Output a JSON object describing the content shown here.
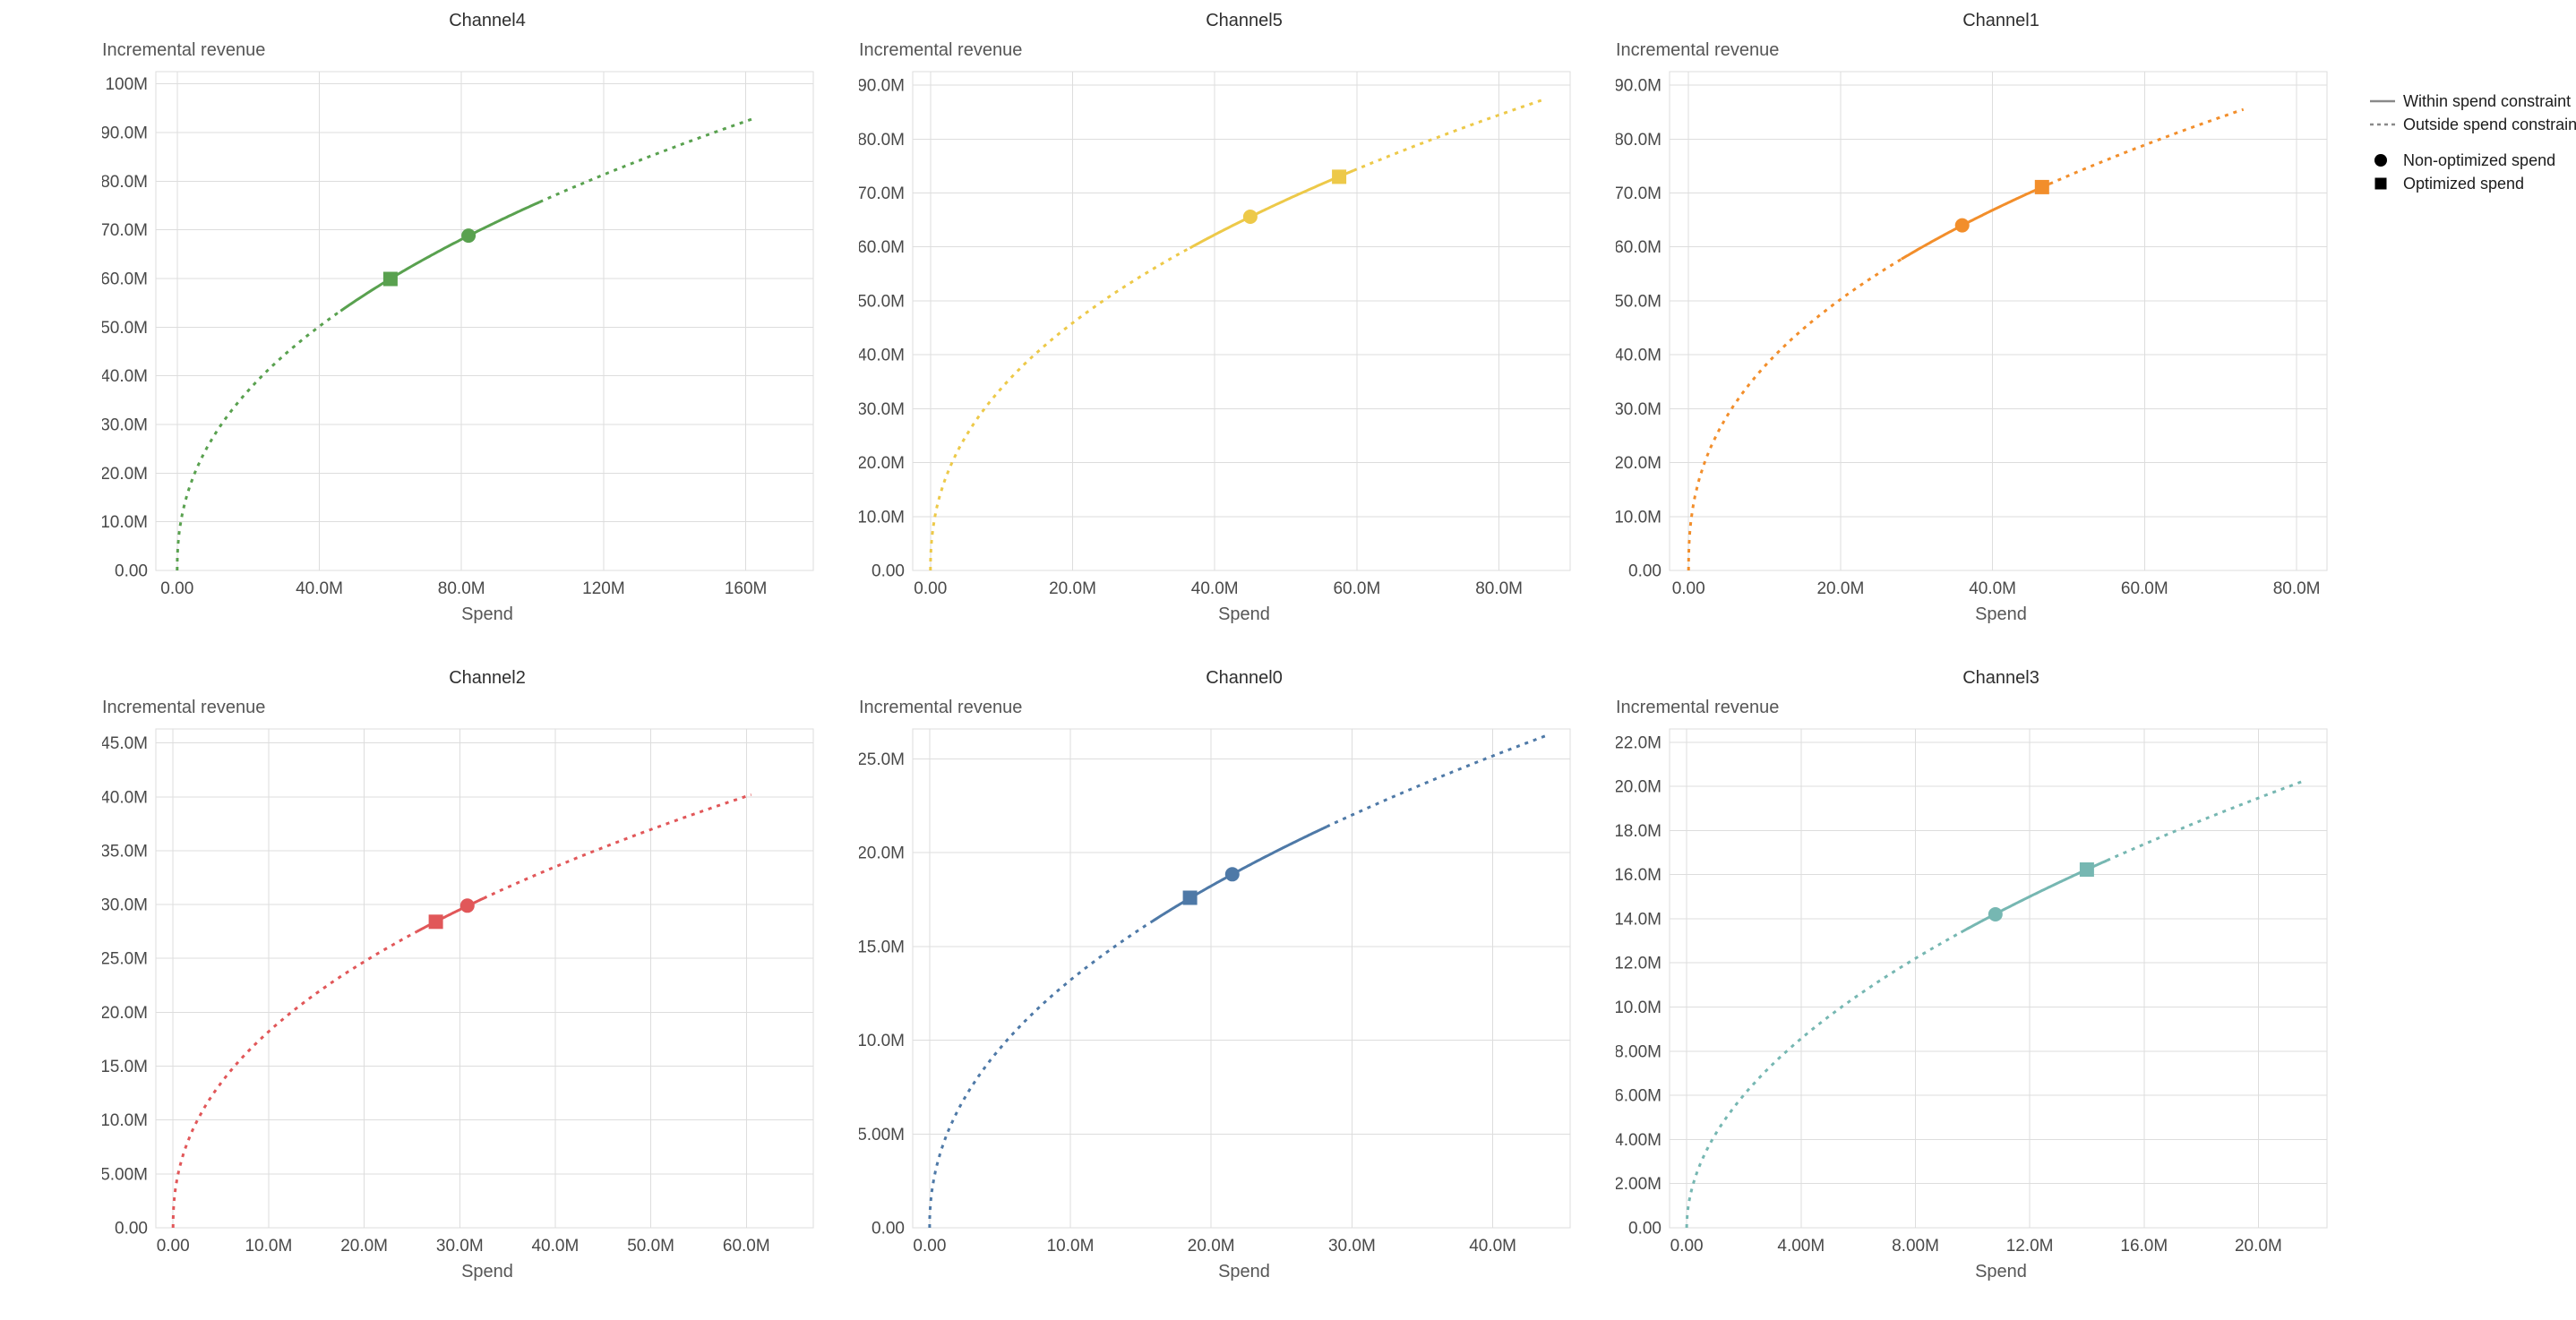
{
  "page": {
    "background": "#ffffff"
  },
  "legend": {
    "line_color": "#8a8a8a",
    "symbol_color": "#000000",
    "items": [
      {
        "label": "Within spend constraint",
        "sample": "solid-line"
      },
      {
        "label": "Outside spend constraint",
        "sample": "dashed-line"
      },
      {
        "label": "Non-optimized spend",
        "sample": "circle"
      },
      {
        "label": "Optimized spend",
        "sample": "square"
      }
    ]
  },
  "chart_data": [
    {
      "type": "line",
      "title": "Channel4",
      "ylabel": "Incremental revenue",
      "xlabel": "Spend",
      "color": "#59a14f",
      "grid": true,
      "x_domain": [
        -6000000,
        179000000
      ],
      "y_domain": [
        0,
        102500000
      ],
      "x_ticks": [
        {
          "value": 0,
          "label": "0.00"
        },
        {
          "value": 40000000,
          "label": "40.0M"
        },
        {
          "value": 80000000,
          "label": "80.0M"
        },
        {
          "value": 120000000,
          "label": "120M"
        },
        {
          "value": 160000000,
          "label": "160M"
        }
      ],
      "y_ticks": [
        {
          "value": 0,
          "label": "0.00"
        },
        {
          "value": 10000000,
          "label": "10.0M"
        },
        {
          "value": 20000000,
          "label": "20.0M"
        },
        {
          "value": 30000000,
          "label": "30.0M"
        },
        {
          "value": 40000000,
          "label": "40.0M"
        },
        {
          "value": 50000000,
          "label": "50.0M"
        },
        {
          "value": 60000000,
          "label": "60.0M"
        },
        {
          "value": 70000000,
          "label": "70.0M"
        },
        {
          "value": 80000000,
          "label": "80.0M"
        },
        {
          "value": 90000000,
          "label": "90.0M"
        },
        {
          "value": 100000000,
          "label": "100M"
        }
      ],
      "curve": {
        "model": "power",
        "x_end": 162000000,
        "y_end": 92800000,
        "exponent": 0.44
      },
      "solid_x_range": [
        46000000,
        102000000
      ],
      "markers": {
        "non_optimized": {
          "x": 82000000,
          "y": 68800000
        },
        "optimized": {
          "x": 60000000,
          "y": 59900000
        }
      }
    },
    {
      "type": "line",
      "title": "Channel5",
      "ylabel": "Incremental revenue",
      "xlabel": "Spend",
      "color": "#edc949",
      "grid": true,
      "x_domain": [
        -2500000,
        90000000
      ],
      "y_domain": [
        0,
        92500000
      ],
      "x_ticks": [
        {
          "value": 0,
          "label": "0.00"
        },
        {
          "value": 20000000,
          "label": "20.0M"
        },
        {
          "value": 40000000,
          "label": "40.0M"
        },
        {
          "value": 60000000,
          "label": "60.0M"
        },
        {
          "value": 80000000,
          "label": "80.0M"
        }
      ],
      "y_ticks": [
        {
          "value": 0,
          "label": "0.00"
        },
        {
          "value": 10000000,
          "label": "10.0M"
        },
        {
          "value": 20000000,
          "label": "20.0M"
        },
        {
          "value": 30000000,
          "label": "30.0M"
        },
        {
          "value": 40000000,
          "label": "40.0M"
        },
        {
          "value": 50000000,
          "label": "50.0M"
        },
        {
          "value": 60000000,
          "label": "60.0M"
        },
        {
          "value": 70000000,
          "label": "70.0M"
        },
        {
          "value": 80000000,
          "label": "80.0M"
        },
        {
          "value": 90000000,
          "label": "90.0M"
        }
      ],
      "curve": {
        "model": "power",
        "x_end": 86000000,
        "y_end": 87200000,
        "exponent": 0.44
      },
      "solid_x_range": [
        36500000,
        59500000
      ],
      "markers": {
        "non_optimized": {
          "x": 45000000,
          "y": 65600000
        },
        "optimized": {
          "x": 57500000,
          "y": 73000000
        }
      }
    },
    {
      "type": "line",
      "title": "Channel1",
      "ylabel": "Incremental revenue",
      "xlabel": "Spend",
      "color": "#f28e2b",
      "grid": true,
      "x_domain": [
        -2500000,
        84000000
      ],
      "y_domain": [
        0,
        92500000
      ],
      "x_ticks": [
        {
          "value": 0,
          "label": "0.00"
        },
        {
          "value": 20000000,
          "label": "20.0M"
        },
        {
          "value": 40000000,
          "label": "40.0M"
        },
        {
          "value": 60000000,
          "label": "60.0M"
        },
        {
          "value": 80000000,
          "label": "80.0M"
        }
      ],
      "y_ticks": [
        {
          "value": 0,
          "label": "0.00"
        },
        {
          "value": 10000000,
          "label": "10.0M"
        },
        {
          "value": 20000000,
          "label": "20.0M"
        },
        {
          "value": 30000000,
          "label": "30.0M"
        },
        {
          "value": 40000000,
          "label": "40.0M"
        },
        {
          "value": 50000000,
          "label": "50.0M"
        },
        {
          "value": 60000000,
          "label": "60.0M"
        },
        {
          "value": 70000000,
          "label": "70.0M"
        },
        {
          "value": 80000000,
          "label": "80.0M"
        },
        {
          "value": 90000000,
          "label": "90.0M"
        }
      ],
      "curve": {
        "model": "power",
        "x_end": 73000000,
        "y_end": 85500000,
        "exponent": 0.41
      },
      "solid_x_range": [
        28000000,
        47500000
      ],
      "markers": {
        "non_optimized": {
          "x": 36000000,
          "y": 64000000
        },
        "optimized": {
          "x": 46500000,
          "y": 71100000
        }
      }
    },
    {
      "type": "line",
      "title": "Channel2",
      "ylabel": "Incremental revenue",
      "xlabel": "Spend",
      "color": "#e15759",
      "grid": true,
      "x_domain": [
        -1800000,
        67000000
      ],
      "y_domain": [
        0,
        46300000
      ],
      "x_ticks": [
        {
          "value": 0,
          "label": "0.00"
        },
        {
          "value": 10000000,
          "label": "10.0M"
        },
        {
          "value": 20000000,
          "label": "20.0M"
        },
        {
          "value": 30000000,
          "label": "30.0M"
        },
        {
          "value": 40000000,
          "label": "40.0M"
        },
        {
          "value": 50000000,
          "label": "50.0M"
        },
        {
          "value": 60000000,
          "label": "60.0M"
        }
      ],
      "y_ticks": [
        {
          "value": 0,
          "label": "0.00"
        },
        {
          "value": 5000000,
          "label": "5.00M"
        },
        {
          "value": 10000000,
          "label": "10.0M"
        },
        {
          "value": 15000000,
          "label": "15.0M"
        },
        {
          "value": 20000000,
          "label": "20.0M"
        },
        {
          "value": 25000000,
          "label": "25.0M"
        },
        {
          "value": 30000000,
          "label": "30.0M"
        },
        {
          "value": 35000000,
          "label": "35.0M"
        },
        {
          "value": 40000000,
          "label": "40.0M"
        },
        {
          "value": 45000000,
          "label": "45.0M"
        }
      ],
      "curve": {
        "model": "power",
        "x_end": 60500000,
        "y_end": 40200000,
        "exponent": 0.44
      },
      "solid_x_range": [
        25500000,
        32500000
      ],
      "markers": {
        "non_optimized": {
          "x": 30800000,
          "y": 29900000
        },
        "optimized": {
          "x": 27500000,
          "y": 28400000
        }
      }
    },
    {
      "type": "line",
      "title": "Channel0",
      "ylabel": "Incremental revenue",
      "xlabel": "Spend",
      "color": "#4e79a7",
      "grid": true,
      "x_domain": [
        -1200000,
        45500000
      ],
      "y_domain": [
        0,
        26600000
      ],
      "x_ticks": [
        {
          "value": 0,
          "label": "0.00"
        },
        {
          "value": 10000000,
          "label": "10.0M"
        },
        {
          "value": 20000000,
          "label": "20.0M"
        },
        {
          "value": 30000000,
          "label": "30.0M"
        },
        {
          "value": 40000000,
          "label": "40.0M"
        }
      ],
      "y_ticks": [
        {
          "value": 0,
          "label": "0.00"
        },
        {
          "value": 5000000,
          "label": "5.00M"
        },
        {
          "value": 10000000,
          "label": "10.0M"
        },
        {
          "value": 15000000,
          "label": "15.0M"
        },
        {
          "value": 20000000,
          "label": "20.0M"
        },
        {
          "value": 25000000,
          "label": "25.0M"
        }
      ],
      "curve": {
        "model": "power",
        "x_end": 44000000,
        "y_end": 26300000,
        "exponent": 0.465
      },
      "solid_x_range": [
        15700000,
        28200000
      ],
      "markers": {
        "non_optimized": {
          "x": 21500000,
          "y": 18850000
        },
        "optimized": {
          "x": 18500000,
          "y": 17600000
        }
      }
    },
    {
      "type": "line",
      "title": "Channel3",
      "ylabel": "Incremental revenue",
      "xlabel": "Spend",
      "color": "#76b7b2",
      "grid": true,
      "x_domain": [
        -600000,
        22400000
      ],
      "y_domain": [
        0,
        22600000
      ],
      "x_ticks": [
        {
          "value": 0,
          "label": "0.00"
        },
        {
          "value": 4000000,
          "label": "4.00M"
        },
        {
          "value": 8000000,
          "label": "8.00M"
        },
        {
          "value": 12000000,
          "label": "12.0M"
        },
        {
          "value": 16000000,
          "label": "16.0M"
        },
        {
          "value": 20000000,
          "label": "20.0M"
        }
      ],
      "y_ticks": [
        {
          "value": 0,
          "label": "0.00"
        },
        {
          "value": 2000000,
          "label": "2.00M"
        },
        {
          "value": 4000000,
          "label": "4.00M"
        },
        {
          "value": 6000000,
          "label": "6.00M"
        },
        {
          "value": 8000000,
          "label": "8.00M"
        },
        {
          "value": 10000000,
          "label": "10.0M"
        },
        {
          "value": 12000000,
          "label": "12.0M"
        },
        {
          "value": 14000000,
          "label": "14.0M"
        },
        {
          "value": 16000000,
          "label": "16.0M"
        },
        {
          "value": 18000000,
          "label": "18.0M"
        },
        {
          "value": 20000000,
          "label": "20.0M"
        },
        {
          "value": 22000000,
          "label": "22.0M"
        }
      ],
      "curve": {
        "model": "power",
        "x_end": 21600000,
        "y_end": 20250000,
        "exponent": 0.51
      },
      "solid_x_range": [
        9600000,
        14700000
      ],
      "markers": {
        "non_optimized": {
          "x": 10800000,
          "y": 14200000
        },
        "optimized": {
          "x": 14000000,
          "y": 16230000
        }
      }
    }
  ]
}
